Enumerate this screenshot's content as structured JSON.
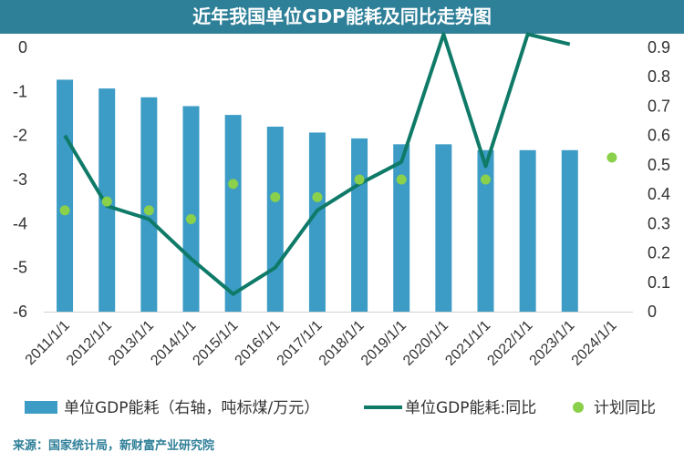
{
  "title": "近年我国单位GDP能耗及同比走势图",
  "source": "来源：国家统计局，新财富产业研究院",
  "colors": {
    "bar": "#3c9cc5",
    "line": "#0f7a68",
    "marker": "#8ad04a",
    "title_bg": "#2e7f98"
  },
  "chart_data": {
    "type": "bar",
    "categories": [
      "2011/1/1",
      "2012/1/1",
      "2013/1/1",
      "2014/1/1",
      "2015/1/1",
      "2016/1/1",
      "2017/1/1",
      "2018/1/1",
      "2019/1/1",
      "2020/1/1",
      "2021/1/1",
      "2022/1/1",
      "2023/1/1",
      "2024/1/1"
    ],
    "y_left": {
      "range": [
        -6,
        0
      ],
      "ticks": [
        "0",
        "-1",
        "-2",
        "-3",
        "-4",
        "-5",
        "-6"
      ]
    },
    "y_right": {
      "range": [
        0,
        0.9
      ],
      "ticks": [
        "0.9",
        "0.8",
        "0.7",
        "0.6",
        "0.5",
        "0.4",
        "0.3",
        "0.2",
        "0.1",
        "0"
      ]
    },
    "series": [
      {
        "name": "单位GDP能耗（右轴，吨标煤/万元）",
        "type": "bar",
        "axis": "right",
        "values": [
          0.79,
          0.76,
          0.73,
          0.7,
          0.67,
          0.63,
          0.61,
          0.59,
          0.57,
          0.57,
          0.55,
          0.55,
          0.55,
          null
        ]
      },
      {
        "name": "单位GDP能耗:同比",
        "type": "line",
        "axis": "left",
        "values": [
          -2.0,
          -3.6,
          -3.9,
          -4.8,
          -5.6,
          -5.0,
          -3.7,
          -3.1,
          -2.6,
          0.3,
          -2.7,
          0.3,
          0.07,
          null
        ]
      },
      {
        "name": "计划同比",
        "type": "scatter",
        "axis": "left",
        "values": [
          -3.7,
          -3.5,
          -3.7,
          -3.9,
          -3.1,
          -3.4,
          -3.4,
          -3.0,
          -3.0,
          null,
          -3.0,
          null,
          null,
          -2.5
        ]
      }
    ],
    "legend_position": "bottom",
    "grid": false
  }
}
